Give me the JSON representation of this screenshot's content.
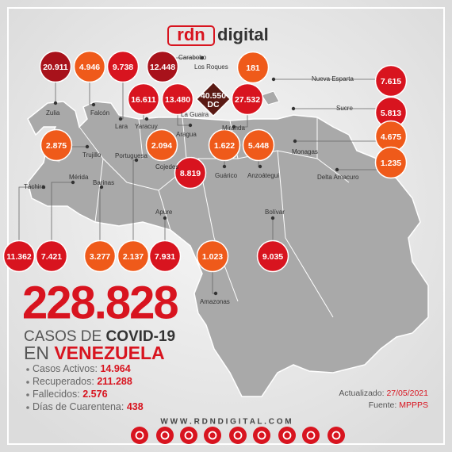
{
  "header": {
    "logo_left": "rdn",
    "logo_right": "digital"
  },
  "circles": [
    {
      "value": "20.911",
      "color": "#a8121b"
    },
    {
      "value": "4.946",
      "color": "#ef5a1a"
    },
    {
      "value": "9.738",
      "color": "#d8141f"
    },
    {
      "value": "12.448",
      "color": "#a8121b"
    },
    {
      "value": "181",
      "color": "#ef5a1a"
    },
    {
      "value": "16.611",
      "color": "#d8141f"
    },
    {
      "value": "13.480",
      "color": "#d8141f"
    },
    {
      "value": "27.532",
      "color": "#d8141f"
    },
    {
      "value": "7.615",
      "color": "#d8141f"
    },
    {
      "value": "5.813",
      "color": "#d8141f"
    },
    {
      "value": "4.675",
      "color": "#ef5a1a"
    },
    {
      "value": "1.235",
      "color": "#ef5a1a"
    },
    {
      "value": "2.875",
      "color": "#ef5a1a"
    },
    {
      "value": "2.094",
      "color": "#ef5a1a"
    },
    {
      "value": "1.622",
      "color": "#ef5a1a"
    },
    {
      "value": "5.448",
      "color": "#ef5a1a"
    },
    {
      "value": "8.819",
      "color": "#d8141f"
    },
    {
      "value": "11.362",
      "color": "#d8141f"
    },
    {
      "value": "7.421",
      "color": "#d8141f"
    },
    {
      "value": "3.277",
      "color": "#ef5a1a"
    },
    {
      "value": "2.137",
      "color": "#ef5a1a"
    },
    {
      "value": "7.931",
      "color": "#d8141f"
    },
    {
      "value": "1.023",
      "color": "#ef5a1a"
    },
    {
      "value": "9.035",
      "color": "#d8141f"
    }
  ],
  "capital": {
    "value": "40.550",
    "label": "DC",
    "color": "#5a1a14"
  },
  "labels": [
    "Zulia",
    "Falcón",
    "Lara",
    "Yaracuy",
    "Carabobo",
    "Los Roques",
    "La Guaira",
    "Aragua",
    "Miranda",
    "Nueva Esparta",
    "Sucre",
    "Monagas",
    "Delta Amacuro",
    "Trujillo",
    "Portuguesa",
    "Cojedes",
    "Guárico",
    "Anzoátegui",
    "Mérida",
    "Barinas",
    "Táchira",
    "Apure",
    "Bolívar",
    "Amazonas"
  ],
  "summary": {
    "total": "228.828",
    "line1_a": "CASOS DE ",
    "line1_b": "COVID-19",
    "line2_a": "EN ",
    "line2_b": "VENEZUELA",
    "stats": [
      {
        "label": "Casos Activos: ",
        "value": "14.964"
      },
      {
        "label": "Recuperados: ",
        "value": "211.288"
      },
      {
        "label": "Fallecidos: ",
        "value": "2.576"
      },
      {
        "label": "Días de Cuarentena: ",
        "value": "438"
      }
    ]
  },
  "updated": {
    "label": "Actualizado: ",
    "date": "27/05/2021"
  },
  "source": {
    "label": "Fuente: ",
    "value": "MPPPS"
  },
  "website": "W W W . R D N D I G I T A L . C O M"
}
